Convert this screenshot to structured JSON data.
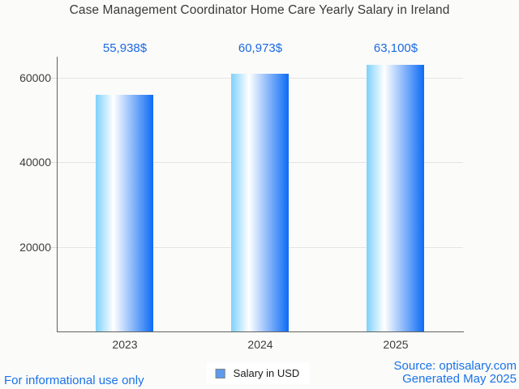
{
  "title": "Case Management Coordinator Home Care Yearly Salary in Ireland",
  "legend": {
    "label": "Salary in USD"
  },
  "footer": {
    "left": "For informational use only",
    "source": "Source: optisalary.com",
    "generated": "Generated May 2025"
  },
  "colors": {
    "background": "#fbfbf9",
    "annotation": "#1c69e3",
    "link": "#1a73e8",
    "title_text": "#3a3a3a",
    "axis_label": "#3d3d3d",
    "axis_line": "#616161",
    "gridline": "#e4e4e4",
    "bar_gradient": [
      "#7ed1fb",
      "#ffffff",
      "#0d6bf5"
    ],
    "legend_marker_fill": "#5b9cf0",
    "legend_marker_border": "#838383"
  },
  "chart_data": {
    "type": "bar",
    "title": "Case Management Coordinator Home Care Yearly Salary in Ireland",
    "categories": [
      "2023",
      "2024",
      "2025"
    ],
    "series": [
      {
        "name": "Salary in USD",
        "values": [
          55938,
          60973,
          63100
        ]
      }
    ],
    "annotations": [
      "55,938$",
      "60,973$",
      "63,100$"
    ],
    "xlabel": "",
    "ylabel": "",
    "ylim": [
      0,
      65000
    ],
    "yticks": [
      20000,
      40000,
      60000
    ],
    "ytick_labels": [
      "20000",
      "40000",
      "60000"
    ],
    "grid": true,
    "legend_position": "bottom",
    "annotation_position": "above-plot"
  }
}
